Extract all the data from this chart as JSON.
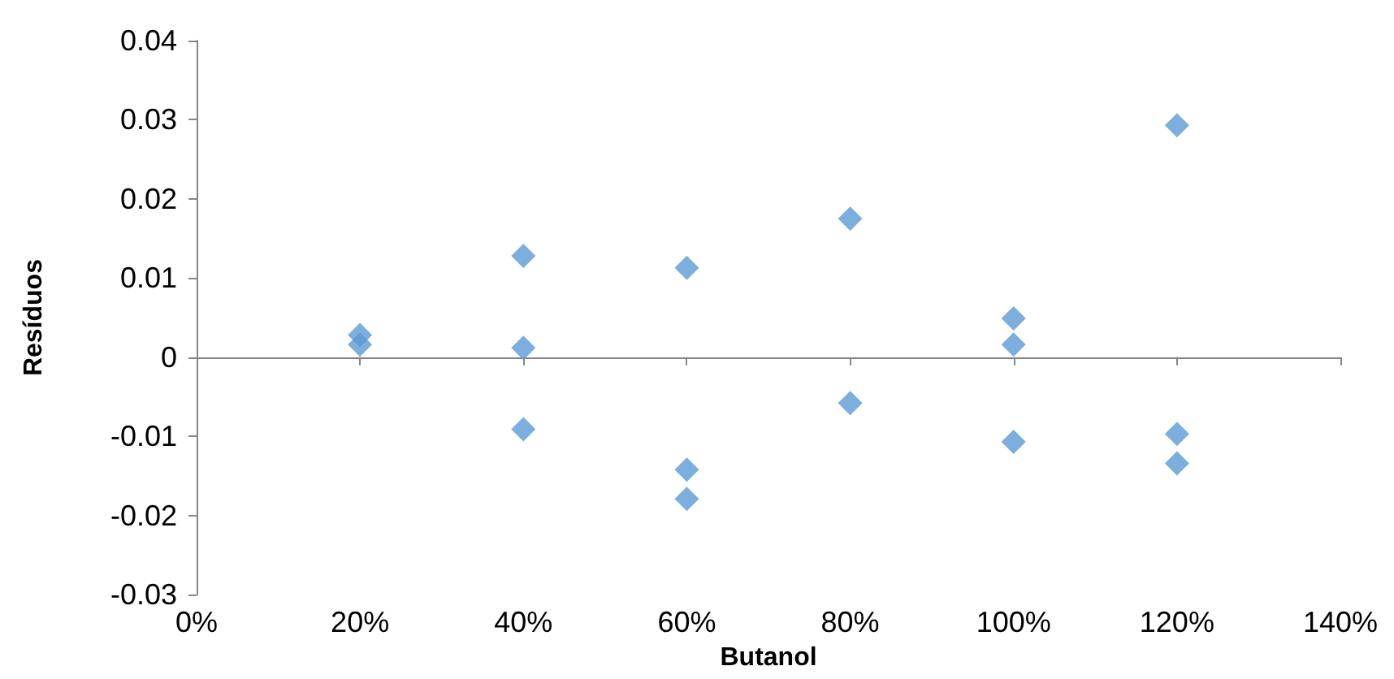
{
  "chart_data": {
    "type": "scatter",
    "xlabel": "Butanol",
    "ylabel": "Resíduos",
    "marker": "diamond",
    "series": [
      {
        "color": "#5b9bd5",
        "x": [
          0.2,
          0.2,
          0.4,
          0.4,
          0.4,
          0.6,
          0.6,
          0.6,
          0.8,
          0.8,
          1.0,
          1.0,
          1.0,
          1.2,
          1.2,
          1.2
        ],
        "values": [
          0.0028,
          0.0016,
          0.0128,
          0.0012,
          -0.0091,
          0.0113,
          -0.0142,
          -0.0179,
          0.0175,
          -0.0058,
          0.0049,
          0.0016,
          -0.0107,
          0.0293,
          -0.0097,
          -0.0134
        ]
      }
    ],
    "xlim": [
      0,
      1.4
    ],
    "xticks": [
      {
        "value": 0,
        "label": "0%"
      },
      {
        "value": 0.2,
        "label": "20%"
      },
      {
        "value": 0.4,
        "label": "40%"
      },
      {
        "value": 0.6,
        "label": "60%"
      },
      {
        "value": 0.8,
        "label": "80%"
      },
      {
        "value": 1.0,
        "label": "100%"
      },
      {
        "value": 1.2,
        "label": "120%"
      },
      {
        "value": 1.4,
        "label": "140%"
      }
    ],
    "ylim": [
      -0.03,
      0.04
    ],
    "yticks": [
      -0.03,
      -0.02,
      -0.01,
      0,
      0.01,
      0.02,
      0.03,
      0.04
    ]
  }
}
